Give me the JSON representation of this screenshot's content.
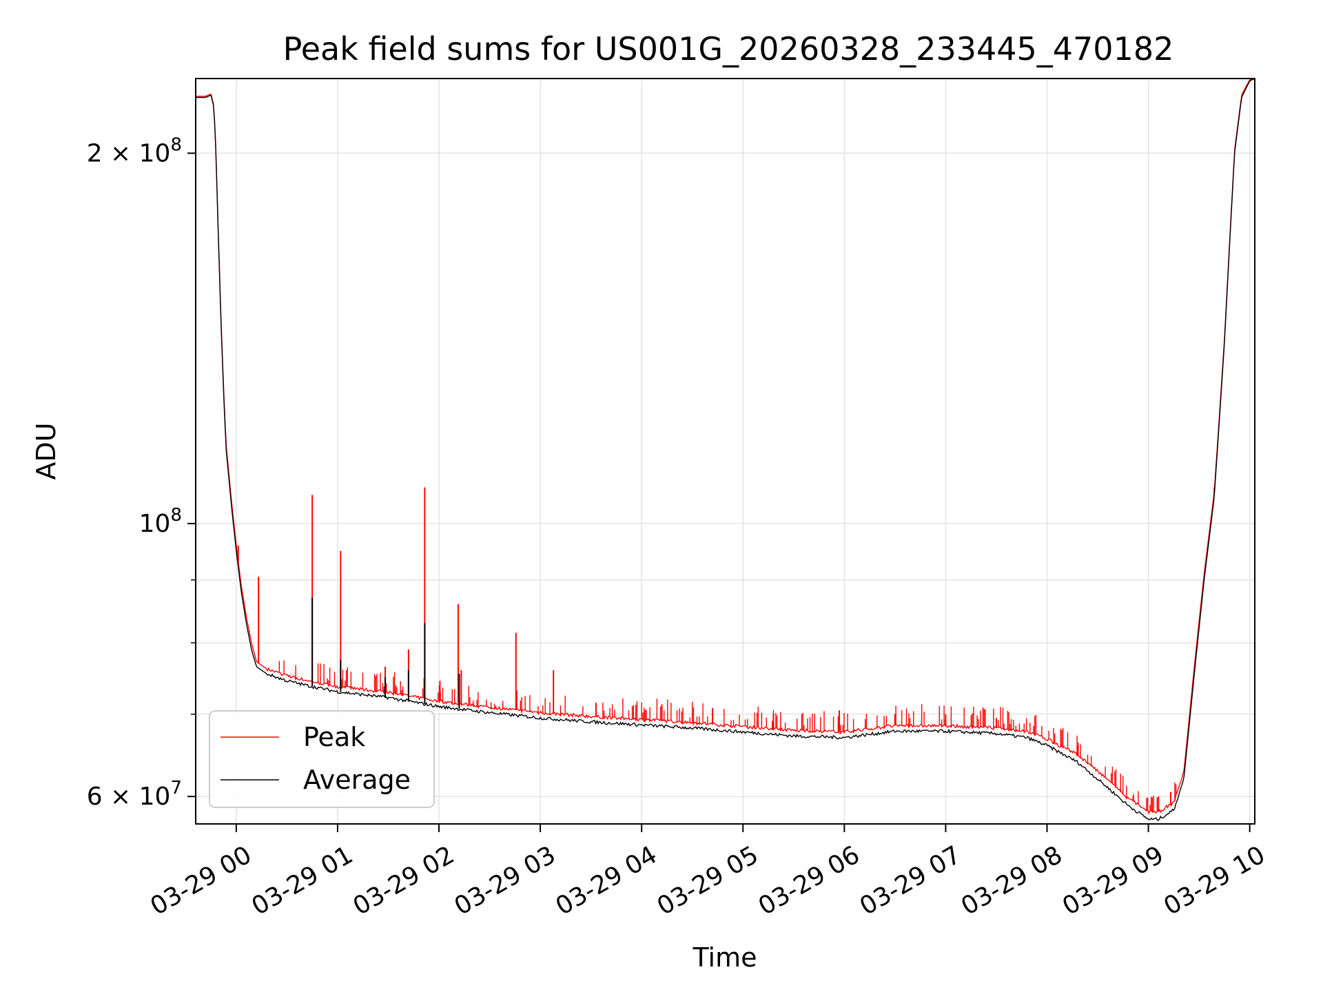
{
  "chart_data": {
    "type": "line",
    "title": "Peak field sums for US001G_20260328_233445_470182",
    "xlabel": "Time",
    "ylabel": "ADU",
    "yscale": "log",
    "ylim": [
      57000000,
      230000000
    ],
    "xlim_hours": [
      -0.4,
      10.05
    ],
    "x_ticks": [
      {
        "hour": 0,
        "label": "03-29 00"
      },
      {
        "hour": 1,
        "label": "03-29 01"
      },
      {
        "hour": 2,
        "label": "03-29 02"
      },
      {
        "hour": 3,
        "label": "03-29 03"
      },
      {
        "hour": 4,
        "label": "03-29 04"
      },
      {
        "hour": 5,
        "label": "03-29 05"
      },
      {
        "hour": 6,
        "label": "03-29 06"
      },
      {
        "hour": 7,
        "label": "03-29 07"
      },
      {
        "hour": 8,
        "label": "03-29 08"
      },
      {
        "hour": 9,
        "label": "03-29 09"
      },
      {
        "hour": 10,
        "label": "03-29 10"
      }
    ],
    "y_major_ticks": [
      {
        "value": 60000000,
        "mantissa": "6 × 10",
        "exponent": "7"
      },
      {
        "value": 100000000,
        "mantissa": "10",
        "exponent": "8"
      },
      {
        "value": 200000000,
        "mantissa": "2 × 10",
        "exponent": "8"
      }
    ],
    "y_minor_ticks": [
      70000000,
      80000000,
      90000000
    ],
    "grid": true,
    "legend_position": "lower-left",
    "series": [
      {
        "name": "Average",
        "color": "#000000",
        "points": [
          [
            -0.4,
            222000000
          ],
          [
            -0.3,
            222000000
          ],
          [
            -0.25,
            223000000
          ],
          [
            -0.22,
            218000000
          ],
          [
            -0.2,
            200000000
          ],
          [
            -0.18,
            175000000
          ],
          [
            -0.15,
            145000000
          ],
          [
            -0.12,
            125000000
          ],
          [
            -0.1,
            115000000
          ],
          [
            -0.05,
            104000000
          ],
          [
            0.0,
            95000000
          ],
          [
            0.05,
            88000000
          ],
          [
            0.1,
            83000000
          ],
          [
            0.15,
            79000000
          ],
          [
            0.2,
            76500000
          ],
          [
            0.3,
            75500000
          ],
          [
            0.5,
            74500000
          ],
          [
            0.75,
            73700000
          ],
          [
            1.0,
            73000000
          ],
          [
            1.5,
            72200000
          ],
          [
            2.0,
            71000000
          ],
          [
            2.5,
            70200000
          ],
          [
            3.0,
            69500000
          ],
          [
            3.5,
            69000000
          ],
          [
            4.0,
            68600000
          ],
          [
            4.5,
            68200000
          ],
          [
            5.0,
            67700000
          ],
          [
            5.5,
            67200000
          ],
          [
            6.0,
            67000000
          ],
          [
            6.5,
            67800000
          ],
          [
            7.0,
            67800000
          ],
          [
            7.5,
            67500000
          ],
          [
            7.8,
            67000000
          ],
          [
            8.0,
            66000000
          ],
          [
            8.3,
            64000000
          ],
          [
            8.6,
            61000000
          ],
          [
            8.8,
            59000000
          ],
          [
            9.0,
            57500000
          ],
          [
            9.1,
            57500000
          ],
          [
            9.25,
            58500000
          ],
          [
            9.35,
            62000000
          ],
          [
            9.45,
            75000000
          ],
          [
            9.55,
            90000000
          ],
          [
            9.65,
            105000000
          ],
          [
            9.75,
            140000000
          ],
          [
            9.85,
            200000000
          ],
          [
            9.92,
            222000000
          ],
          [
            10.0,
            229000000
          ],
          [
            10.05,
            230000000
          ]
        ]
      },
      {
        "name": "Peak",
        "color": "#ff0000",
        "points": [
          [
            -0.4,
            222500000
          ],
          [
            -0.3,
            222500000
          ],
          [
            -0.25,
            223500000
          ],
          [
            -0.22,
            218500000
          ],
          [
            -0.2,
            201000000
          ],
          [
            -0.18,
            176000000
          ],
          [
            -0.15,
            146000000
          ],
          [
            -0.12,
            126000000
          ],
          [
            -0.1,
            116000000
          ],
          [
            -0.05,
            105000000
          ],
          [
            0.0,
            96000000
          ],
          [
            0.05,
            89000000
          ],
          [
            0.1,
            84000000
          ],
          [
            0.15,
            80000000
          ],
          [
            0.2,
            77200000
          ],
          [
            0.3,
            76200000
          ],
          [
            0.5,
            75200000
          ],
          [
            0.75,
            74400000
          ],
          [
            1.0,
            73700000
          ],
          [
            1.5,
            72900000
          ],
          [
            2.0,
            71700000
          ],
          [
            2.5,
            70900000
          ],
          [
            3.0,
            70200000
          ],
          [
            3.5,
            69700000
          ],
          [
            4.0,
            69300000
          ],
          [
            4.5,
            68900000
          ],
          [
            5.0,
            68400000
          ],
          [
            5.5,
            67900000
          ],
          [
            6.0,
            67700000
          ],
          [
            6.5,
            68500000
          ],
          [
            7.0,
            68500000
          ],
          [
            7.5,
            68200000
          ],
          [
            7.8,
            67800000
          ],
          [
            8.0,
            66800000
          ],
          [
            8.3,
            64900000
          ],
          [
            8.6,
            61900000
          ],
          [
            8.8,
            59800000
          ],
          [
            9.0,
            58300000
          ],
          [
            9.1,
            58300000
          ],
          [
            9.25,
            59300000
          ],
          [
            9.35,
            62800000
          ],
          [
            9.45,
            76000000
          ],
          [
            9.55,
            91000000
          ],
          [
            9.65,
            106000000
          ],
          [
            9.75,
            141000000
          ],
          [
            9.85,
            201000000
          ],
          [
            9.92,
            223000000
          ],
          [
            10.0,
            229500000
          ],
          [
            10.05,
            230000000
          ]
        ],
        "spikes": [
          [
            0.02,
            96000000
          ],
          [
            0.22,
            90500000
          ],
          [
            0.75,
            105500000
          ],
          [
            1.03,
            95000000
          ],
          [
            1.47,
            76500000
          ],
          [
            1.7,
            79000000
          ],
          [
            1.86,
            107000000
          ],
          [
            2.01,
            74500000
          ],
          [
            2.19,
            86000000
          ],
          [
            2.22,
            76000000
          ],
          [
            2.76,
            81500000
          ],
          [
            3.13,
            76000000
          ],
          [
            3.55,
            71500000
          ],
          [
            4.2,
            71300000
          ],
          [
            4.7,
            70800000
          ],
          [
            5.3,
            70000000
          ],
          [
            5.95,
            70500000
          ],
          [
            6.5,
            70000000
          ],
          [
            7.0,
            70000000
          ],
          [
            7.5,
            69500000
          ],
          [
            8.3,
            66000000
          ],
          [
            8.85,
            60000000
          ],
          [
            9.1,
            60000000
          ],
          [
            9.22,
            60500000
          ],
          [
            9.65,
            107000000
          ]
        ]
      }
    ]
  }
}
